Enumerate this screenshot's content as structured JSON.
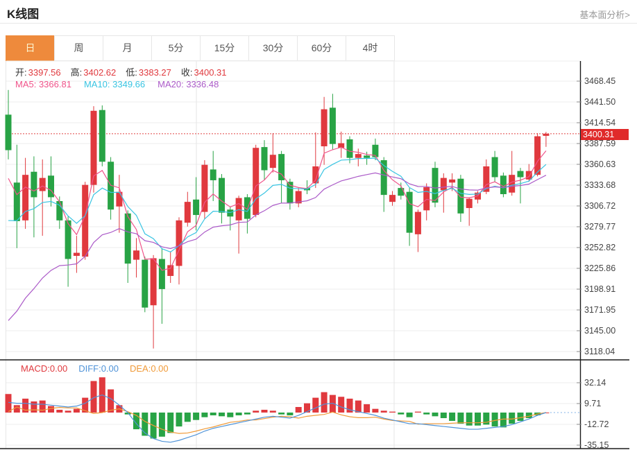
{
  "header": {
    "title": "K线图",
    "link": "基本面分析>"
  },
  "tabs": [
    {
      "label": "日",
      "active": true
    },
    {
      "label": "周",
      "active": false
    },
    {
      "label": "月",
      "active": false
    },
    {
      "label": "5分",
      "active": false
    },
    {
      "label": "15分",
      "active": false
    },
    {
      "label": "30分",
      "active": false
    },
    {
      "label": "60分",
      "active": false
    },
    {
      "label": "4时",
      "active": false
    }
  ],
  "overlay": {
    "ohlc": [
      {
        "label": "开:",
        "value": "3397.56"
      },
      {
        "label": "高:",
        "value": "3402.62"
      },
      {
        "label": "低:",
        "value": "3383.27"
      },
      {
        "label": "收:",
        "value": "3400.31"
      }
    ],
    "ma": [
      {
        "label": "MA5:",
        "value": "3366.81",
        "color": "#f0538a"
      },
      {
        "label": "MA10:",
        "value": "3349.66",
        "color": "#38c4e2"
      },
      {
        "label": "MA20:",
        "value": "3336.48",
        "color": "#ab5ac8"
      }
    ]
  },
  "price_axis": {
    "ticks": [
      "3468.45",
      "3441.50",
      "3414.54",
      "3387.59",
      "3360.63",
      "3333.68",
      "3306.72",
      "3279.77",
      "3252.82",
      "3225.86",
      "3198.91",
      "3171.95",
      "3145.00",
      "3118.04"
    ],
    "last_price": "3400.31"
  },
  "macd_panel": {
    "labels": [
      {
        "text": "MACD:0.00",
        "color": "#e0393e"
      },
      {
        "text": "DIFF:0.00",
        "color": "#4f93d8"
      },
      {
        "text": "DEA:0.00",
        "color": "#f09a38"
      }
    ],
    "ticks": [
      "32.14",
      "9.71",
      "-12.72",
      "-35.15"
    ]
  },
  "chart_data": {
    "type": "candlestick+macd",
    "title": "K线图 (daily K-line with MA5/MA10/MA20 and MACD)",
    "up_color": "#e0393e",
    "down_color": "#28a345",
    "grid": true,
    "price_axis": {
      "top_tick": 3468.45,
      "bottom_tick": 3118.04,
      "tick_count": 14
    },
    "last_close": 3400.31,
    "candles": [
      [
        3425,
        3457,
        3367,
        3379
      ],
      [
        3337,
        3386,
        3252,
        3287
      ],
      [
        3288,
        3369,
        3277,
        3347
      ],
      [
        3351,
        3371,
        3266,
        3318
      ],
      [
        3326,
        3367,
        3268,
        3343
      ],
      [
        3346,
        3371,
        3306,
        3318
      ],
      [
        3313,
        3319,
        3277,
        3288
      ],
      [
        3288,
        3293,
        3202,
        3238
      ],
      [
        3242,
        3268,
        3220,
        3246
      ],
      [
        3241,
        3338,
        3237,
        3334
      ],
      [
        3334,
        3436,
        3324,
        3430
      ],
      [
        3431,
        3437,
        3358,
        3364
      ],
      [
        3364,
        3370,
        3289,
        3302
      ],
      [
        3306,
        3347,
        3272,
        3325
      ],
      [
        3297,
        3301,
        3207,
        3232
      ],
      [
        3237,
        3265,
        3214,
        3249
      ],
      [
        3237,
        3241,
        3169,
        3175
      ],
      [
        3178,
        3243,
        3122,
        3239
      ],
      [
        3238,
        3252,
        3154,
        3199
      ],
      [
        3216,
        3248,
        3207,
        3230
      ],
      [
        3229,
        3292,
        3205,
        3288
      ],
      [
        3285,
        3325,
        3280,
        3312
      ],
      [
        3315,
        3344,
        3275,
        3295
      ],
      [
        3299,
        3366,
        3290,
        3360
      ],
      [
        3354,
        3378,
        3313,
        3340
      ],
      [
        3343,
        3348,
        3284,
        3298
      ],
      [
        3302,
        3306,
        3275,
        3293
      ],
      [
        3288,
        3320,
        3245,
        3317
      ],
      [
        3318,
        3322,
        3271,
        3290
      ],
      [
        3295,
        3386,
        3292,
        3382
      ],
      [
        3383,
        3392,
        3340,
        3353
      ],
      [
        3356,
        3401,
        3350,
        3373
      ],
      [
        3374,
        3378,
        3310,
        3340
      ],
      [
        3338,
        3342,
        3302,
        3310
      ],
      [
        3310,
        3330,
        3305,
        3326
      ],
      [
        3330,
        3340,
        3322,
        3327
      ],
      [
        3336,
        3402,
        3330,
        3358
      ],
      [
        3384,
        3448,
        3360,
        3432
      ],
      [
        3434,
        3452,
        3380,
        3387
      ],
      [
        3382,
        3403,
        3369,
        3388
      ],
      [
        3393,
        3397,
        3362,
        3369
      ],
      [
        3369,
        3381,
        3358,
        3374
      ],
      [
        3372,
        3377,
        3360,
        3369
      ],
      [
        3386,
        3394,
        3366,
        3370
      ],
      [
        3366,
        3370,
        3299,
        3321
      ],
      [
        3312,
        3326,
        3307,
        3321
      ],
      [
        3330,
        3337,
        3315,
        3320
      ],
      [
        3325,
        3330,
        3255,
        3272
      ],
      [
        3270,
        3302,
        3247,
        3299
      ],
      [
        3301,
        3336,
        3288,
        3331
      ],
      [
        3356,
        3364,
        3305,
        3311
      ],
      [
        3327,
        3349,
        3298,
        3343
      ],
      [
        3337,
        3349,
        3326,
        3341
      ],
      [
        3342,
        3347,
        3286,
        3297
      ],
      [
        3304,
        3318,
        3281,
        3316
      ],
      [
        3315,
        3326,
        3310,
        3324
      ],
      [
        3325,
        3367,
        3322,
        3358
      ],
      [
        3370,
        3378,
        3338,
        3344
      ],
      [
        3346,
        3350,
        3318,
        3322
      ],
      [
        3324,
        3378,
        3320,
        3347
      ],
      [
        3352,
        3356,
        3310,
        3344
      ],
      [
        3341,
        3361,
        3338,
        3352
      ],
      [
        3347,
        3401,
        3345,
        3397
      ],
      [
        3397.56,
        3402.62,
        3383.27,
        3400.31
      ]
    ],
    "ma": {
      "ma5": {
        "period": 5,
        "seed": 3320,
        "k": 0.38,
        "color": "#f0538a",
        "last": 3366.81
      },
      "ma10": {
        "period": 10,
        "seed": 3265,
        "k": 0.2,
        "color": "#38c4e2",
        "last": 3349.66
      },
      "ma20": {
        "period": 20,
        "seed": 3135,
        "k": 0.095,
        "color": "#ab5ac8",
        "last": 3336.48
      }
    },
    "macd": {
      "axis_ticks": [
        32.14,
        9.71,
        -12.72,
        -35.15
      ],
      "last_values": {
        "macd": 0.0,
        "diff": 0.0,
        "dea": 0.0
      },
      "diff_color": "#4f93d8",
      "dea_color": "#f09a38",
      "hist": [
        20,
        8,
        15,
        12,
        13,
        7,
        3,
        2,
        4,
        16,
        34,
        38,
        25,
        8,
        -2,
        -18,
        -25,
        -28,
        -26,
        -22,
        -15,
        -10,
        -8,
        -5,
        -3,
        -4,
        -5,
        -3,
        -2,
        2,
        3,
        2,
        -2,
        -3,
        6,
        10,
        16,
        22,
        19,
        17,
        15,
        13,
        9,
        4,
        2,
        1,
        -2,
        -5,
        1,
        -2,
        -4,
        -6,
        -9,
        -12,
        -14,
        -14,
        -13,
        -15,
        -16,
        -12,
        -9,
        -6,
        -3,
        0
      ],
      "diff": [
        11,
        10,
        10,
        9,
        9,
        8,
        7,
        6,
        7,
        10,
        16,
        19,
        15,
        8,
        0,
        -12,
        -22,
        -28,
        -31,
        -32,
        -30,
        -27,
        -24,
        -20,
        -17,
        -15,
        -13,
        -11,
        -9,
        -7,
        -5,
        -4,
        -5,
        -6,
        -3,
        1,
        5,
        9,
        10,
        6,
        3,
        1,
        -1,
        -3,
        -6,
        -8,
        -10,
        -12,
        -12,
        -13,
        -14,
        -15,
        -16,
        -17,
        -18,
        -18,
        -17,
        -16,
        -15,
        -13,
        -10,
        -7,
        -3,
        0
      ]
    }
  }
}
